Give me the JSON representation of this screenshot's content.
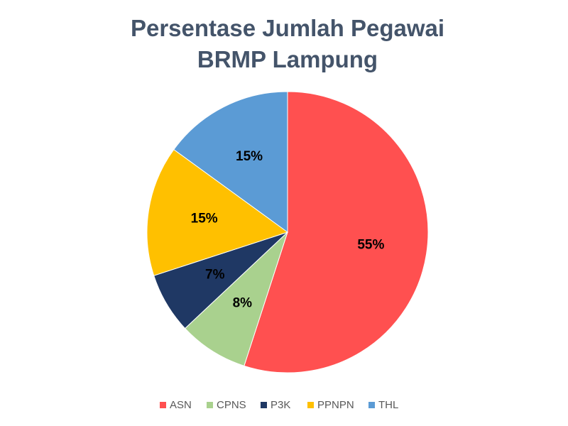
{
  "chart_data": {
    "type": "pie",
    "title": "Persentase Jumlah Pegawai BRMP Lampung",
    "categories": [
      "ASN",
      "CPNS",
      "P3K",
      "PPNPN",
      "THL"
    ],
    "values": [
      55,
      8,
      7,
      15,
      15
    ],
    "value_labels": [
      "55%",
      "8%",
      "7%",
      "15%",
      "15%"
    ],
    "colors": [
      "#ff5050",
      "#a9d18e",
      "#1f3864",
      "#ffc000",
      "#5b9bd5"
    ],
    "legend": "bottom"
  }
}
